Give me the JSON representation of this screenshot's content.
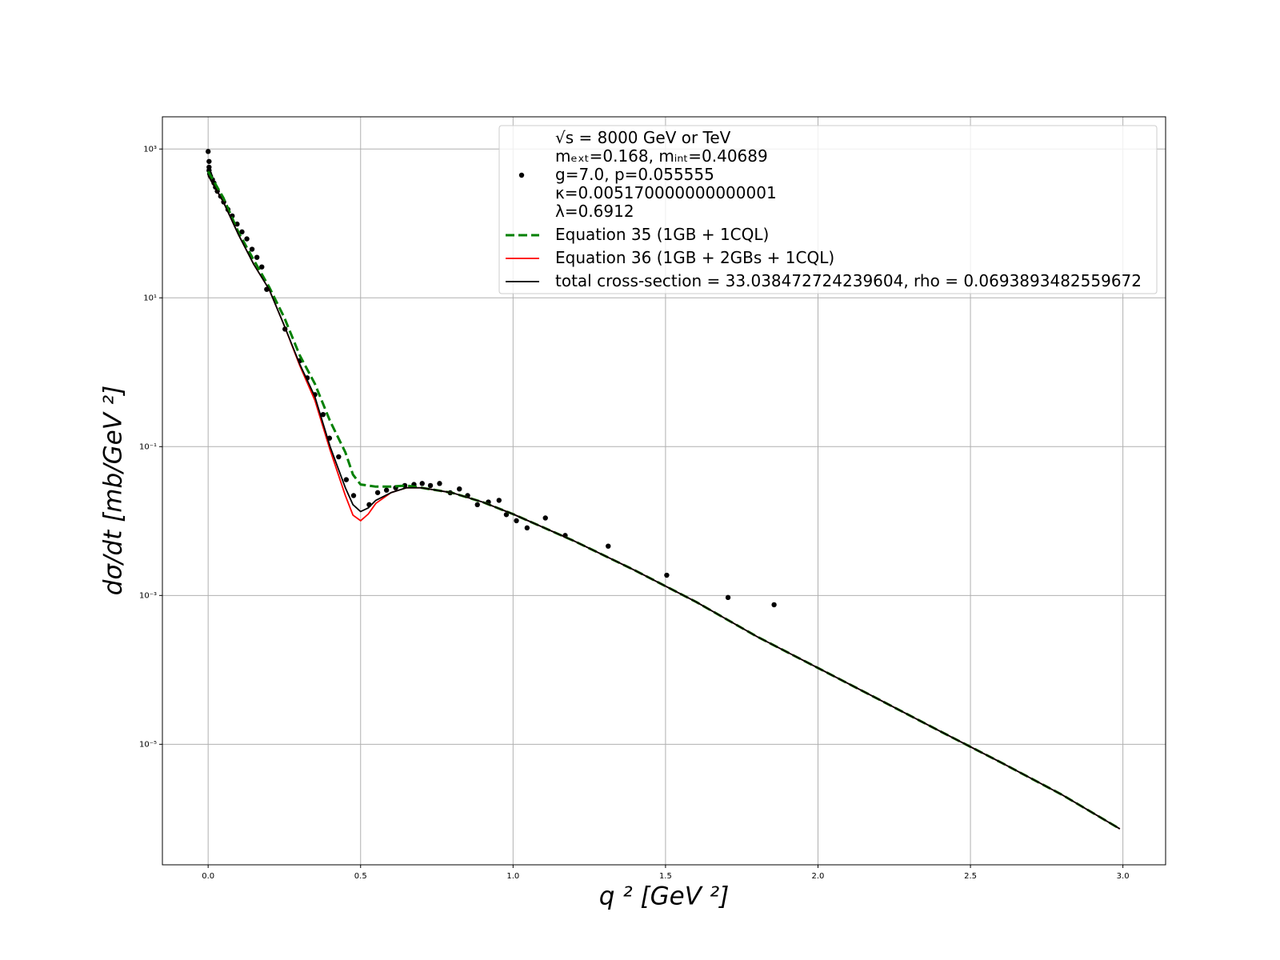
{
  "chart_data": {
    "type": "line",
    "xlabel": "q ² [GeV ²]",
    "ylabel": "dσ/dt  [mb/GeV ²]",
    "log_y": true,
    "grid": true,
    "legend": "upper right",
    "xlim": [
      -0.15,
      3.14
    ],
    "ylim": [
      2.4e-07,
      2710
    ],
    "xticks": [
      {
        "value": 0,
        "label": "0.0"
      },
      0.5,
      {
        "value": 1,
        "label": "1.0"
      },
      1.5,
      {
        "value": 2,
        "label": "2.0"
      },
      2.5,
      {
        "value": 3,
        "label": "3.0"
      }
    ],
    "yticks": [
      {
        "value": 1000,
        "label": "10³"
      },
      {
        "value": 10,
        "label": "10¹"
      },
      {
        "value": 0.1,
        "label": "10⁻¹"
      },
      {
        "value": 0.001,
        "label": "10⁻³"
      },
      {
        "value": 1e-05,
        "label": "10⁻⁵"
      }
    ],
    "x": [
      0,
      0.05,
      0.1,
      0.15,
      0.2,
      0.25,
      0.3,
      0.35,
      0.4,
      0.45,
      0.475,
      0.5,
      0.525,
      0.55,
      0.6,
      0.65,
      0.7,
      0.8,
      0.9,
      1.0,
      1.2,
      1.4,
      1.6,
      1.8,
      2.0,
      2.2,
      2.4,
      2.6,
      2.8,
      2.99
    ],
    "series": [
      {
        "name": "√s = 8000 GeV or TeV\nmₑₓₜ=0.168, mᵢₙₜ=0.40689\ng=7.0, p=0.055555\nκ=0.005170000000000001\nλ=0.6912",
        "style": "dots",
        "color": "#000000",
        "x": [
          0,
          0.003,
          0.003,
          0.003,
          0.005,
          0.008,
          0.014,
          0.019,
          0.024,
          0.03,
          0.041,
          0.051,
          0.065,
          0.079,
          0.095,
          0.111,
          0.127,
          0.144,
          0.16,
          0.176,
          0.192,
          0.252,
          0.301,
          0.325,
          0.35,
          0.377,
          0.398,
          0.428,
          0.453,
          0.477,
          0.528,
          0.556,
          0.585,
          0.615,
          0.645,
          0.675,
          0.702,
          0.729,
          0.759,
          0.794,
          0.824,
          0.851,
          0.883,
          0.919,
          0.954,
          0.978,
          1.011,
          1.046,
          1.106,
          1.171,
          1.312,
          1.504,
          1.705,
          1.856
        ],
        "values": [
          927,
          681,
          570,
          515,
          464,
          430,
          388,
          350,
          308,
          271,
          232,
          194,
          154,
          126,
          98,
          77,
          62,
          45,
          35,
          26,
          13,
          3.8,
          1.43,
          0.84,
          0.5,
          0.27,
          0.13,
          0.073,
          0.036,
          0.022,
          0.0166,
          0.0241,
          0.026,
          0.028,
          0.03,
          0.031,
          0.032,
          0.03,
          0.032,
          0.024,
          0.027,
          0.022,
          0.0166,
          0.018,
          0.019,
          0.0122,
          0.0101,
          0.0081,
          0.011,
          0.0064,
          0.0046,
          0.00187,
          0.00094,
          0.00075
        ]
      },
      {
        "name": "Equation 35 (1GB + 1CQL)",
        "style": "dashed",
        "color": "#008000",
        "values": [
          500,
          221,
          75,
          32,
          14,
          5.4,
          1.7,
          0.7,
          0.22,
          0.084,
          0.042,
          0.031,
          0.03,
          0.029,
          0.029,
          0.03,
          0.028,
          0.024,
          0.018,
          0.0124,
          0.0054,
          0.00217,
          0.00082,
          0.00028,
          0.000106,
          4e-05,
          1.5e-05,
          5.7e-06,
          2.1e-06,
          7.3e-07
        ]
      },
      {
        "name": "Equation 36 (1GB + 2GBs + 1CQL)",
        "style": "solid",
        "color": "#ff0000",
        "values": [
          441,
          194,
          70,
          28,
          13,
          4.2,
          1.24,
          0.42,
          0.09,
          0.022,
          0.012,
          0.0101,
          0.0124,
          0.0173,
          0.0241,
          0.028,
          0.028,
          0.024,
          0.018,
          0.0124,
          0.0054,
          0.00217,
          0.00082,
          0.00028,
          0.000106,
          4e-05,
          1.5e-05,
          5.7e-06,
          2.1e-06,
          7.3e-07
        ]
      },
      {
        "name": "total cross-section = 33.038472724239604, rho = 0.0693893482559672",
        "style": "solid",
        "color": "#000000",
        "values": [
          441,
          194,
          70,
          28,
          13,
          4.2,
          1.3,
          0.47,
          0.1,
          0.028,
          0.0166,
          0.0134,
          0.015,
          0.019,
          0.0241,
          0.028,
          0.028,
          0.024,
          0.018,
          0.0124,
          0.0054,
          0.00217,
          0.00082,
          0.00028,
          0.000106,
          4e-05,
          1.5e-05,
          5.7e-06,
          2.1e-06,
          7.3e-07
        ]
      }
    ]
  }
}
